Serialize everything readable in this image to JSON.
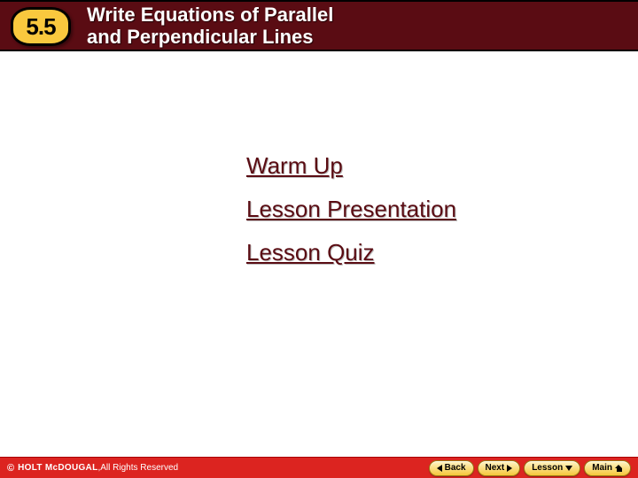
{
  "colors": {
    "header_bg": "#5a0c13",
    "badge_bg": "#f9c83e",
    "badge_border": "#000000",
    "title_text": "#ffffff",
    "body_bg": "#ffffff",
    "link_color": "#5a0c13",
    "link_shadow": "#bfbfbf",
    "footer_bg": "#dc2420",
    "footer_text": "#ffffff",
    "button_bg_top": "#fff4c8",
    "button_bg_bottom": "#f6c73a",
    "button_border": "#9a7a12",
    "button_text": "#000000"
  },
  "header": {
    "section_number": "5.5",
    "title_line1": "Write Equations of Parallel",
    "title_line2": "and Perpendicular Lines",
    "title_fontsize": 22,
    "badge_fontsize": 26
  },
  "links": {
    "fontsize": 26,
    "items": [
      {
        "label": "Warm Up"
      },
      {
        "label": "Lesson Presentation"
      },
      {
        "label": "Lesson Quiz"
      }
    ]
  },
  "footer": {
    "copyright_symbol": "©",
    "publisher": "HOLT McDOUGAL",
    "separator": ", ",
    "rights": "All Rights Reserved",
    "buttons": {
      "back": "Back",
      "next": "Next",
      "lesson": "Lesson",
      "main": "Main"
    }
  }
}
